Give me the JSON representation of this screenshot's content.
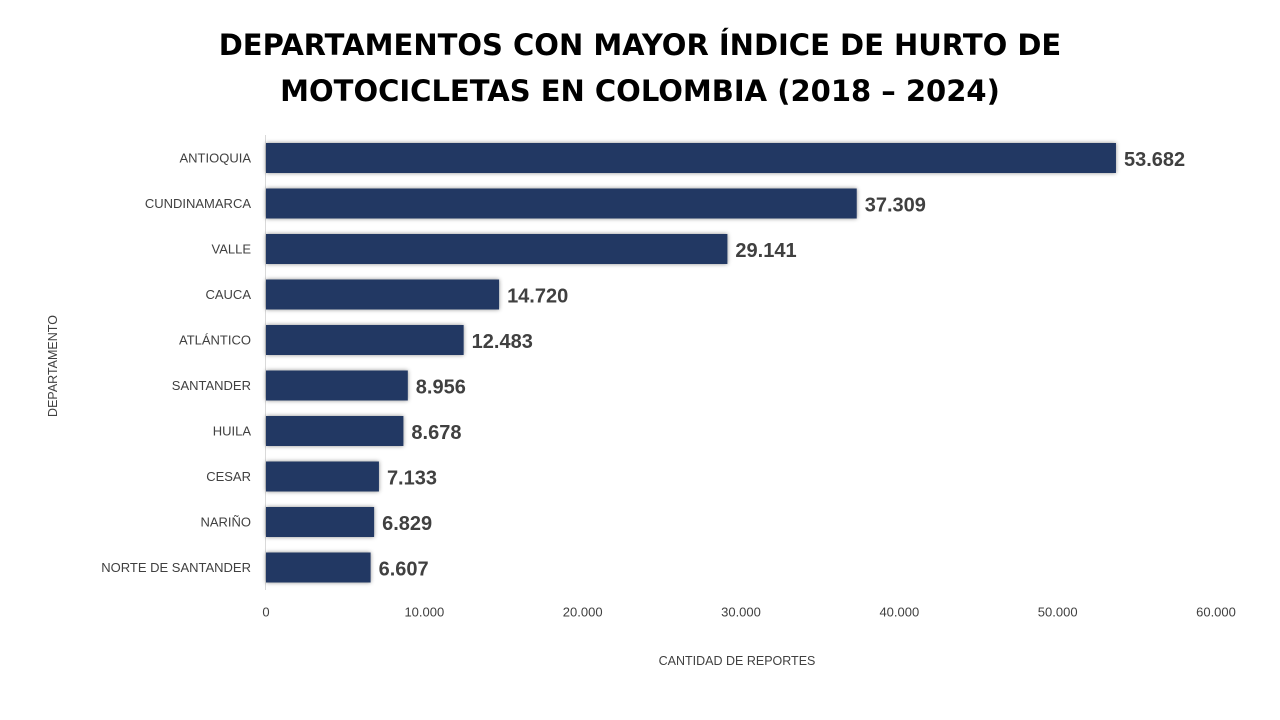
{
  "chart_data": {
    "type": "bar",
    "orientation": "horizontal",
    "title_lines": [
      "DEPARTAMENTOS CON MAYOR ÍNDICE DE HURTO DE",
      "MOTOCICLETAS EN COLOMBIA (2018 – 2024)"
    ],
    "xlabel": "CANTIDAD DE REPORTES",
    "ylabel": "DEPARTAMENTO",
    "categories": [
      "ANTIOQUIA",
      "CUNDINAMARCA",
      "VALLE",
      "CAUCA",
      "ATLÁNTICO",
      "SANTANDER",
      "HUILA",
      "CESAR",
      "NARIÑO",
      "NORTE DE SANTANDER"
    ],
    "values": [
      53682,
      37309,
      29141,
      14720,
      12483,
      8956,
      8678,
      7133,
      6829,
      6607
    ],
    "data_labels": [
      "53.682",
      "37.309",
      "29.141",
      "14.720",
      "12.483",
      "8.956",
      "8.678",
      "7.133",
      "6.829",
      "6.607"
    ],
    "xlim": [
      0,
      60000
    ],
    "xticks": [
      0,
      10000,
      20000,
      30000,
      40000,
      50000,
      60000
    ],
    "xtick_labels": [
      "0",
      "10.000",
      "20.000",
      "30.000",
      "40.000",
      "50.000",
      "60.000"
    ],
    "grid": false,
    "legend": "none",
    "bar_color": "#203864",
    "text_color": "#404040"
  }
}
